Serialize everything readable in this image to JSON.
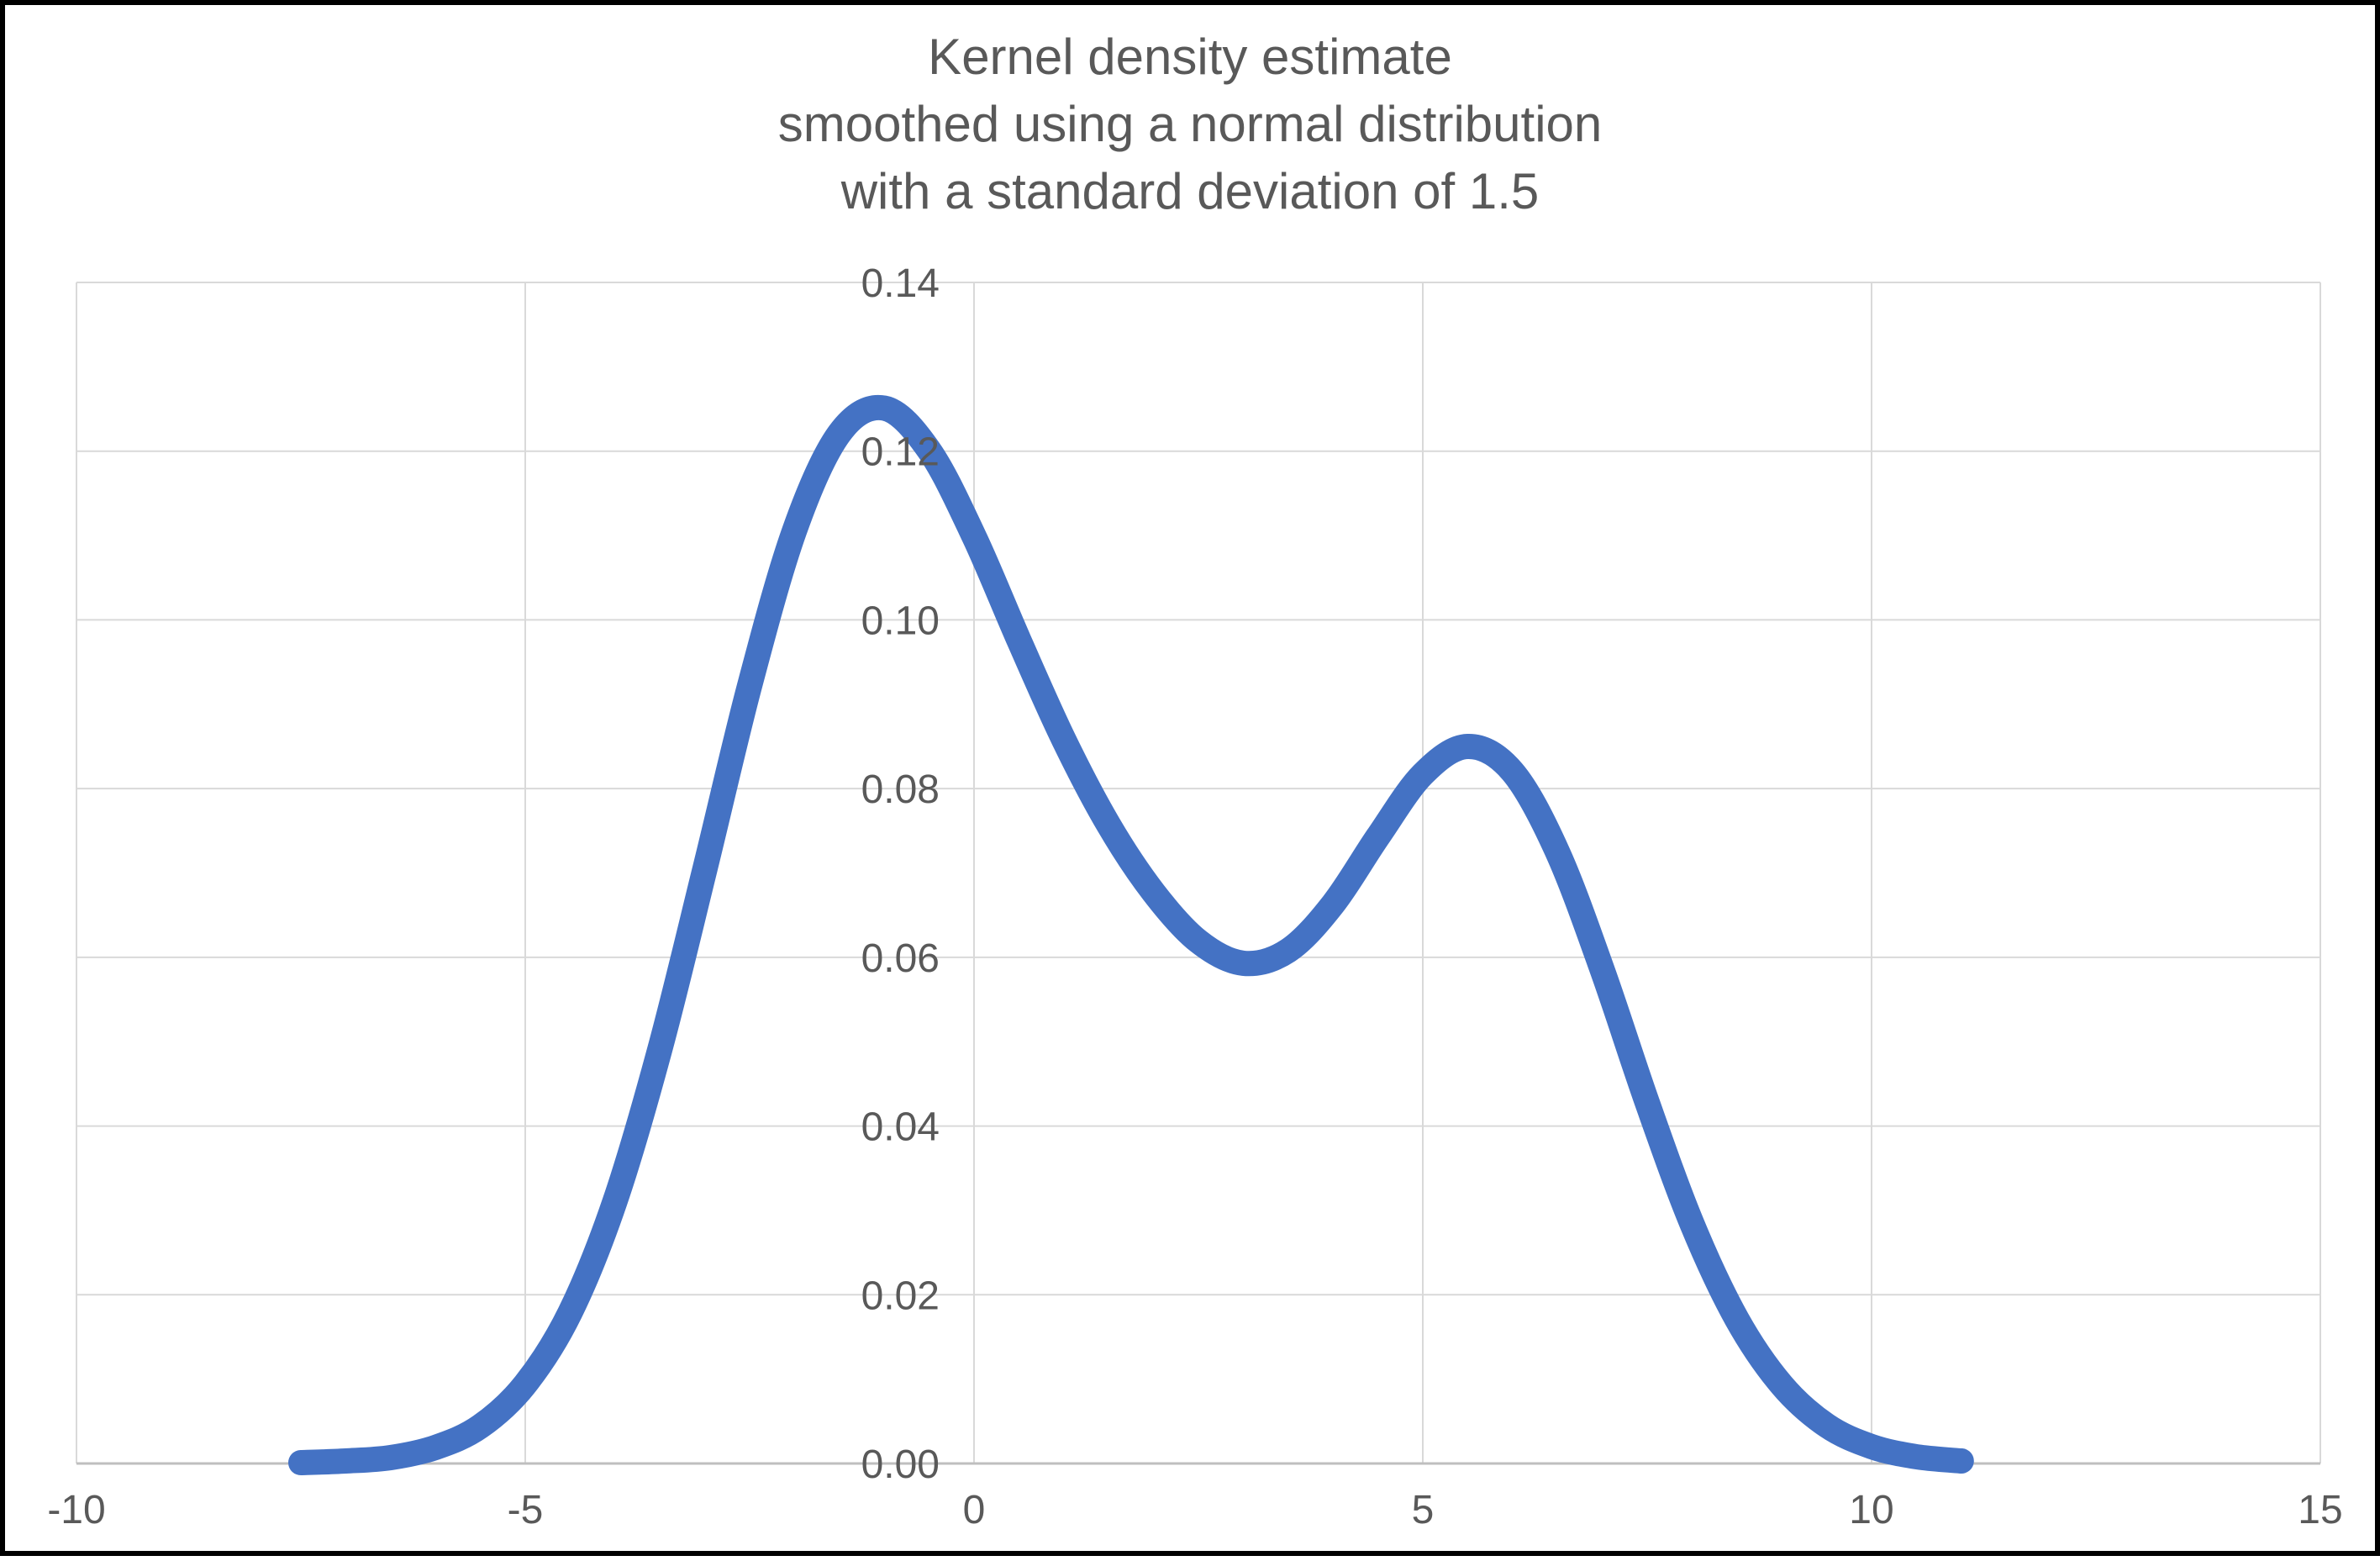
{
  "window": {
    "background_color": "#FFFFFF",
    "frame_color": "#000000"
  },
  "chart_data": {
    "type": "line",
    "title_lines": [
      "Kernel density estimate",
      "smoothed using a normal distribution",
      "with a standard deviation of 1.5"
    ],
    "xlabel": "",
    "ylabel": "",
    "xlim": [
      -10,
      15
    ],
    "ylim": [
      0,
      0.14
    ],
    "grid": true,
    "legend": "none",
    "x_ticks": {
      "values": [
        -10,
        -5,
        0,
        5,
        10,
        15
      ],
      "labels": [
        "-10",
        "-5",
        "0",
        "5",
        "10",
        "15"
      ]
    },
    "y_ticks": {
      "values": [
        0,
        0.02,
        0.04,
        0.06,
        0.08,
        0.1,
        0.12,
        0.14
      ],
      "labels": [
        "0.00",
        "0.02",
        "0.04",
        "0.06",
        "0.08",
        "0.10",
        "0.12",
        "0.14"
      ]
    },
    "series": [
      {
        "name": "kernel-density-estimate",
        "color": "#4472C4",
        "stroke_width": 30,
        "x": [
          -7.5,
          -7.0,
          -6.5,
          -6.0,
          -5.5,
          -5.0,
          -4.5,
          -4.0,
          -3.5,
          -3.0,
          -2.5,
          -2.0,
          -1.5,
          -1.0,
          -0.5,
          0.0,
          0.5,
          1.0,
          1.5,
          2.0,
          2.5,
          3.0,
          3.5,
          4.0,
          4.5,
          5.0,
          5.5,
          6.0,
          6.5,
          7.0,
          7.5,
          8.0,
          8.5,
          9.0,
          9.5,
          10.0,
          10.5,
          11.0
        ],
        "y": [
          0.0001,
          0.0003,
          0.0007,
          0.0019,
          0.0044,
          0.0094,
          0.0179,
          0.0311,
          0.0491,
          0.0704,
          0.0922,
          0.1106,
          0.1221,
          0.1251,
          0.1201,
          0.1099,
          0.0976,
          0.0858,
          0.0757,
          0.0677,
          0.0619,
          0.0593,
          0.0608,
          0.0663,
          0.0743,
          0.0817,
          0.085,
          0.082,
          0.0725,
          0.0585,
          0.0428,
          0.0284,
          0.0171,
          0.0093,
          0.0045,
          0.002,
          0.0008,
          0.0003
        ],
        "annotations": {
          "first_peak": {
            "x": -1.0,
            "y": 0.125
          },
          "local_minimum": {
            "x": 3.0,
            "y": 0.059
          },
          "second_peak": {
            "x": 5.5,
            "y": 0.085
          }
        }
      }
    ],
    "styles": {
      "text_color": "#595959",
      "gridline_color": "#D9D9D9",
      "axis_line_color": "#BFBFBF",
      "plot_background": "#FFFFFF"
    }
  }
}
